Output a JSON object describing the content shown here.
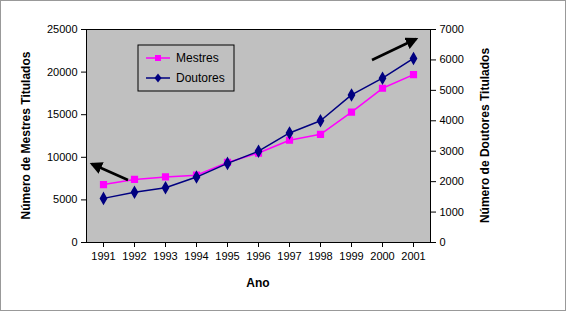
{
  "chart_data": {
    "type": "line",
    "xlabel": "Ano",
    "ylabel": "Número de Mestres Titulados",
    "y2label": "Número de Doutores Titulados",
    "categories": [
      "1991",
      "1992",
      "1993",
      "1994",
      "1995",
      "1996",
      "1997",
      "1998",
      "1999",
      "2000",
      "2001"
    ],
    "series": [
      {
        "name": "Mestres",
        "color": "#ff00ff",
        "marker": "square",
        "axis": "y",
        "values": [
          6800,
          7400,
          7700,
          7900,
          9400,
          10500,
          12000,
          12700,
          15300,
          18100,
          19700
        ]
      },
      {
        "name": "Doutores",
        "color": "#000080",
        "marker": "diamond",
        "axis": "y2",
        "values": [
          1450,
          1650,
          1800,
          2150,
          2600,
          3000,
          3600,
          4000,
          4850,
          5400,
          6050
        ]
      }
    ],
    "ylim": [
      0,
      25000
    ],
    "yticks": [
      0,
      5000,
      10000,
      15000,
      20000,
      25000
    ],
    "y2lim": [
      0,
      7000
    ],
    "y2ticks": [
      0,
      1000,
      2000,
      3000,
      4000,
      5000,
      6000,
      7000
    ],
    "legend": "top-left",
    "grid": false
  }
}
